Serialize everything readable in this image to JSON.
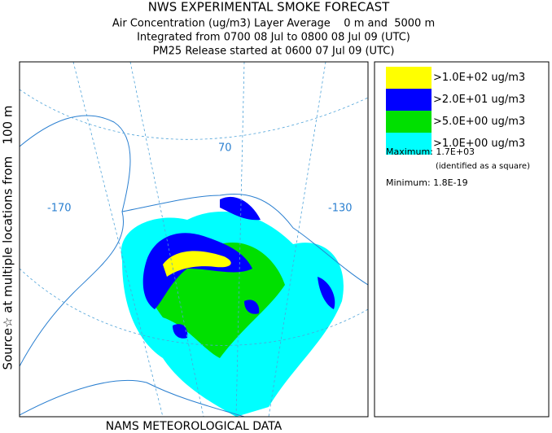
{
  "header": {
    "title": "NWS EXPERIMENTAL SMOKE FORECAST",
    "lines": [
      "Air Concentration (ug/m3) Layer Average    0 m and  5000 m",
      "Integrated from 0700 08 Jul to 0800 08 Jul 09 (UTC)",
      "PM25 Release started at 0600 07 Jul 09 (UTC)"
    ]
  },
  "side_label": "Source☆ at multiple locations from   100 m",
  "map": {
    "labels": [
      "-170",
      "-130",
      "70"
    ]
  },
  "legend": {
    "items": [
      {
        "label": ">1.0E+02 ug/m3",
        "color": "#ffff00"
      },
      {
        "label": ">2.0E+01 ug/m3",
        "color": "#0000ff"
      },
      {
        "label": ">5.0E+00 ug/m3",
        "color": "#00e000"
      },
      {
        "label": ">1.0E+00 ug/m3",
        "color": "#00ffff"
      }
    ],
    "maximum": "Maximum: 1.7E+03",
    "maximum_note": "(identified as a square)",
    "minimum": "Minimum: 1.8E-19"
  },
  "footer": "NAMS METEOROLOGICAL DATA"
}
